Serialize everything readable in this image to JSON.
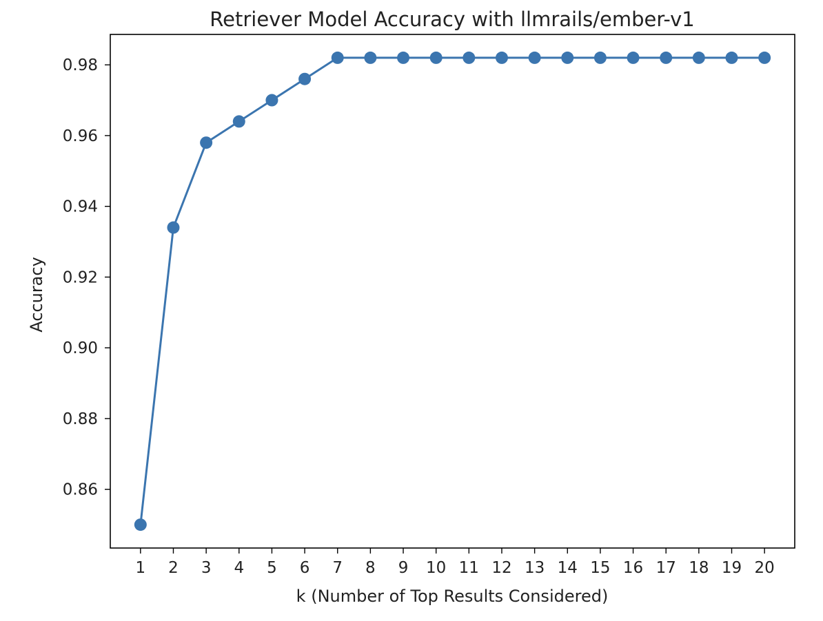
{
  "chart_data": {
    "type": "line",
    "title": "Retriever Model Accuracy with llmrails/ember-v1",
    "xlabel": "k (Number of Top Results Considered)",
    "ylabel": "Accuracy",
    "x": [
      1,
      2,
      3,
      4,
      5,
      6,
      7,
      8,
      9,
      10,
      11,
      12,
      13,
      14,
      15,
      16,
      17,
      18,
      19,
      20
    ],
    "series": [
      {
        "values": [
          0.85,
          0.934,
          0.958,
          0.964,
          0.97,
          0.976,
          0.982,
          0.982,
          0.982,
          0.982,
          0.982,
          0.982,
          0.982,
          0.982,
          0.982,
          0.982,
          0.982,
          0.982,
          0.982,
          0.982
        ],
        "color": "#3b75af",
        "marker": "circle"
      }
    ],
    "x_ticks": [
      "1",
      "2",
      "3",
      "4",
      "5",
      "6",
      "7",
      "8",
      "9",
      "10",
      "11",
      "12",
      "13",
      "14",
      "15",
      "16",
      "17",
      "18",
      "19",
      "20"
    ],
    "y_ticks": [
      "0.86",
      "0.88",
      "0.90",
      "0.92",
      "0.94",
      "0.96",
      "0.98"
    ],
    "xlim": [
      0.08,
      20.92
    ],
    "ylim": [
      0.8434,
      0.9886
    ],
    "grid": false,
    "legend": "none"
  }
}
